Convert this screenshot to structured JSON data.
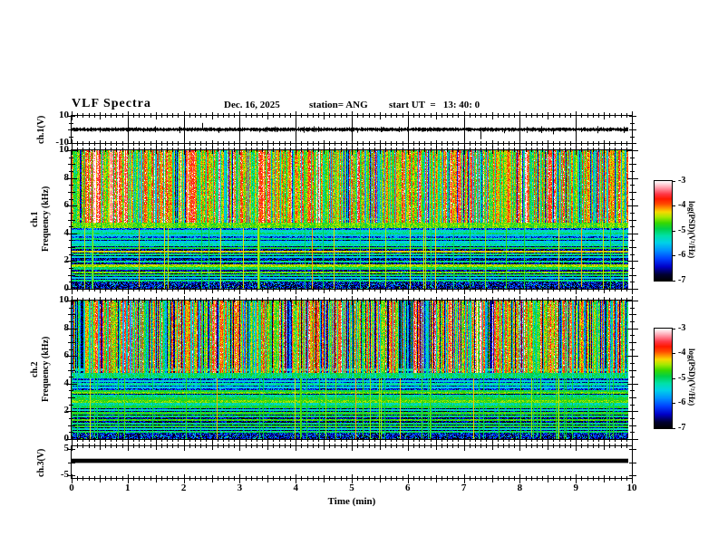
{
  "header": {
    "title": "VLF Spectra",
    "date": "Dec. 16, 2025",
    "station": "station= ANG",
    "start_ut": "start UT  =   13: 40: 0"
  },
  "chart_data": {
    "x_axis": {
      "label": "Time (min)",
      "range": [
        0,
        10
      ],
      "major_ticks": [
        0,
        1,
        2,
        3,
        4,
        5,
        6,
        7,
        8,
        9,
        10
      ],
      "minor_step": 0.1,
      "data_end_min": 9.93
    },
    "z_scale": {
      "label": "log(PSD)(V²/Hz)",
      "range": [
        -7,
        -3
      ],
      "ticks": [
        "-3",
        "-4",
        "-5",
        "-6",
        "-7"
      ],
      "colormap_stops": [
        [
          0.0,
          "#000002"
        ],
        [
          0.06,
          "#000030"
        ],
        [
          0.14,
          "#0000c8"
        ],
        [
          0.22,
          "#0040ff"
        ],
        [
          0.3,
          "#0090ff"
        ],
        [
          0.38,
          "#00d0e8"
        ],
        [
          0.45,
          "#00e0a8"
        ],
        [
          0.52,
          "#00d048"
        ],
        [
          0.58,
          "#38d800"
        ],
        [
          0.64,
          "#a8e800"
        ],
        [
          0.69,
          "#f8d800"
        ],
        [
          0.73,
          "#ff9000"
        ],
        [
          0.77,
          "#ff4800"
        ],
        [
          0.82,
          "#ff1800"
        ],
        [
          0.87,
          "#ff3848"
        ],
        [
          0.92,
          "#ff8898"
        ],
        [
          0.96,
          "#ffc8d0"
        ],
        [
          1.0,
          "#ffffff"
        ]
      ]
    },
    "panels": [
      {
        "id": "ch1_wave",
        "type": "line",
        "ylabel": "ch.1(V)",
        "ylim": [
          -10,
          10
        ],
        "ytick_labels": [
          "10",
          "-10"
        ],
        "ytick_values": [
          10,
          -10
        ],
        "description": "broadband noise ~±1.5 V around 0 V with sporadic impulses",
        "signal": {
          "kind": "noise",
          "mean": 0,
          "amplitude": 1.5,
          "seed": 21,
          "spikes": [
            [
              0.5,
              -2.2
            ],
            [
              1.15,
              1.8
            ],
            [
              2.33,
              4.8
            ],
            [
              2.62,
              -2.6
            ],
            [
              3.35,
              -2.2
            ],
            [
              4.35,
              -1.8
            ],
            [
              5.1,
              -2.4
            ],
            [
              5.52,
              -2.0
            ],
            [
              6.45,
              1.6
            ],
            [
              7.3,
              -7.2
            ],
            [
              7.72,
              -2.8
            ],
            [
              8.6,
              -3.6
            ],
            [
              9.3,
              1.5
            ]
          ]
        }
      },
      {
        "id": "ch1_spec",
        "type": "heatmap",
        "channel": "ch.1",
        "ylabel": "Frequency (kHz)",
        "ylim": [
          0,
          10
        ],
        "yticks": [
          0,
          2,
          4,
          6,
          8,
          10
        ],
        "seed": 7,
        "sferic_band_khz": [
          4.8,
          10
        ],
        "base_level": -6.5,
        "gain": 3.1,
        "pixel_noise": 0.7,
        "red_speck_prob": 0.06,
        "red_threshold": 0.82,
        "bright_band_khz": [
          4.35,
          4.8
        ],
        "bright_level": -4.7,
        "mid_band_khz": [
          3.5,
          4.35
        ],
        "mid_level": -6.15,
        "low_level": -6.6,
        "speckle_top_khz": 0.5,
        "speckle_level": -6.55,
        "dark_col_prob": 0.05,
        "punch_prob": 0.055,
        "harmonic_lines": [
          [
            5.05,
            -5.3
          ],
          [
            4.15,
            -5.3
          ],
          [
            4.0,
            -5.05
          ],
          [
            3.85,
            -5.5
          ],
          [
            3.6,
            -5.1
          ],
          [
            3.35,
            -5.45
          ],
          [
            3.15,
            -5.2
          ],
          [
            2.95,
            -4.9
          ],
          [
            2.65,
            -4.35
          ],
          [
            2.45,
            -5.0
          ],
          [
            2.25,
            -5.4
          ],
          [
            1.95,
            -5.1
          ],
          [
            1.65,
            -4.45
          ],
          [
            1.45,
            -5.0
          ],
          [
            1.15,
            -4.6
          ],
          [
            0.95,
            -4.95
          ],
          [
            0.75,
            -5.45
          ],
          [
            0.55,
            -5.05
          ]
        ]
      },
      {
        "id": "ch2_spec",
        "type": "heatmap",
        "channel": "ch.2",
        "ylabel": "Frequency (kHz)",
        "ylim": [
          0,
          10
        ],
        "yticks": [
          0,
          2,
          4,
          6,
          8,
          10
        ],
        "seed": 13,
        "sferic_band_khz": [
          4.75,
          10
        ],
        "base_level": -6.75,
        "gain": 3.3,
        "pixel_noise": 0.75,
        "red_speck_prob": 0.05,
        "red_threshold": 0.86,
        "bright_band_khz": [
          4.4,
          4.75
        ],
        "bright_level": -5.1,
        "mid_band_khz": [
          3.4,
          4.4
        ],
        "mid_level": -6.3,
        "low_level": -6.65,
        "speckle_top_khz": 0.5,
        "speckle_level": -6.5,
        "dark_col_prob": 0.14,
        "punch_prob": 0.09,
        "harmonic_lines": [
          [
            5.0,
            -5.4
          ],
          [
            4.2,
            -5.4
          ],
          [
            3.95,
            -5.2
          ],
          [
            3.7,
            -5.45
          ],
          [
            3.45,
            -4.9
          ],
          [
            3.3,
            -4.6
          ],
          [
            3.1,
            -5.1
          ],
          [
            2.9,
            -4.85
          ],
          [
            2.7,
            -4.6
          ],
          [
            2.5,
            -5.2
          ],
          [
            2.3,
            -4.9
          ],
          [
            2.05,
            -5.3
          ],
          [
            1.85,
            -4.8
          ],
          [
            1.6,
            -5.0
          ],
          [
            1.35,
            -4.7
          ],
          [
            1.1,
            -5.0
          ],
          [
            0.9,
            -4.85
          ],
          [
            0.7,
            -5.3
          ],
          [
            0.5,
            -5.0
          ]
        ]
      },
      {
        "id": "ch3_wave",
        "type": "line",
        "ylabel": "ch.3(V)",
        "ylim": [
          -6,
          6
        ],
        "ytick_labels": [
          "5",
          "-5"
        ],
        "ytick_values": [
          5,
          -5
        ],
        "description": "constant thick trace",
        "signal": {
          "kind": "constant",
          "value": 0.5,
          "thickness_v": 1.6
        }
      }
    ]
  }
}
